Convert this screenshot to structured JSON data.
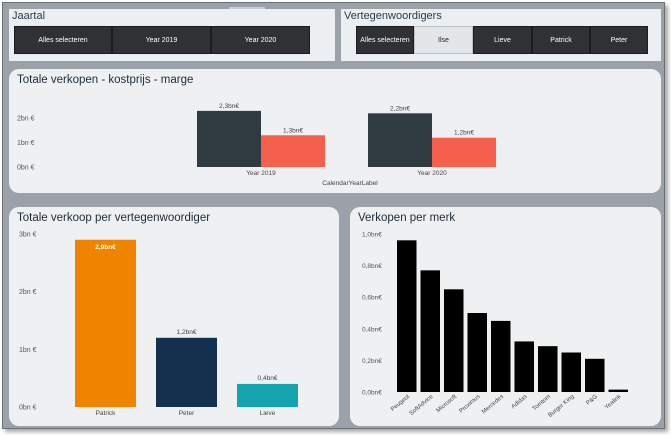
{
  "slicer_jaartal": {
    "title": "Jaartal",
    "options": [
      "Alles selecteren",
      "Year 2019",
      "Year 2020"
    ]
  },
  "slicer_vertegenwoordigers": {
    "title": "Vertegenwoordigers",
    "options": [
      "Alles selecteren",
      "Ilse",
      "Lieve",
      "Patrick",
      "Peter"
    ],
    "selected": "Ilse"
  },
  "colors": {
    "cost": "#2f3b40",
    "margin": "#f4604c",
    "patrick": "#ee8400",
    "peter": "#13304f",
    "lieve": "#15a4ad",
    "brand": "#000000"
  },
  "chart_data": [
    {
      "type": "bar",
      "title": "Totale verkopen - kostprijs - marge",
      "categories": [
        "Year 2019",
        "Year 2020"
      ],
      "series": [
        {
          "values": [
            2.3,
            2.2
          ],
          "labels": [
            "2,3bn€",
            "2,2bn€"
          ]
        },
        {
          "values": [
            1.3,
            1.2
          ],
          "labels": [
            "1,3bn€",
            "1,2bn€"
          ]
        }
      ],
      "xlabel": "CalendarYearLabel",
      "ylabel": "",
      "yticks": [
        "0bn €",
        "1bn €",
        "2bn €"
      ],
      "ylim": [
        0,
        2.5
      ],
      "grid": false,
      "legend": "none"
    },
    {
      "type": "bar",
      "title": "Totale verkoop per vertegenwoordiger",
      "categories": [
        "Patrick",
        "Peter",
        "Lieve"
      ],
      "values": [
        2.9,
        1.2,
        0.4
      ],
      "labels": [
        "2,9bn€",
        "1,2bn€",
        "0,4bn€"
      ],
      "yticks": [
        "0bn €",
        "1bn €",
        "2bn €",
        "3bn €"
      ],
      "ylim": [
        0,
        3
      ],
      "grid": false
    },
    {
      "type": "bar",
      "title": "Verkopen per merk",
      "categories": [
        "Peugeot",
        "SoftAdvice",
        "Microsoft",
        "Proximus",
        "Mercedes",
        "Adidas",
        "Tomtom",
        "Burger King",
        "P&G",
        "Yealink"
      ],
      "values": [
        0.96,
        0.77,
        0.65,
        0.5,
        0.45,
        0.32,
        0.29,
        0.25,
        0.21,
        0.015
      ],
      "yticks": [
        "0,0bn€",
        "0,2bn€",
        "0,4bn€",
        "0,6bn€",
        "0,8bn€",
        "1,0bn€"
      ],
      "ylim": [
        0,
        1.0
      ],
      "grid": false
    }
  ]
}
